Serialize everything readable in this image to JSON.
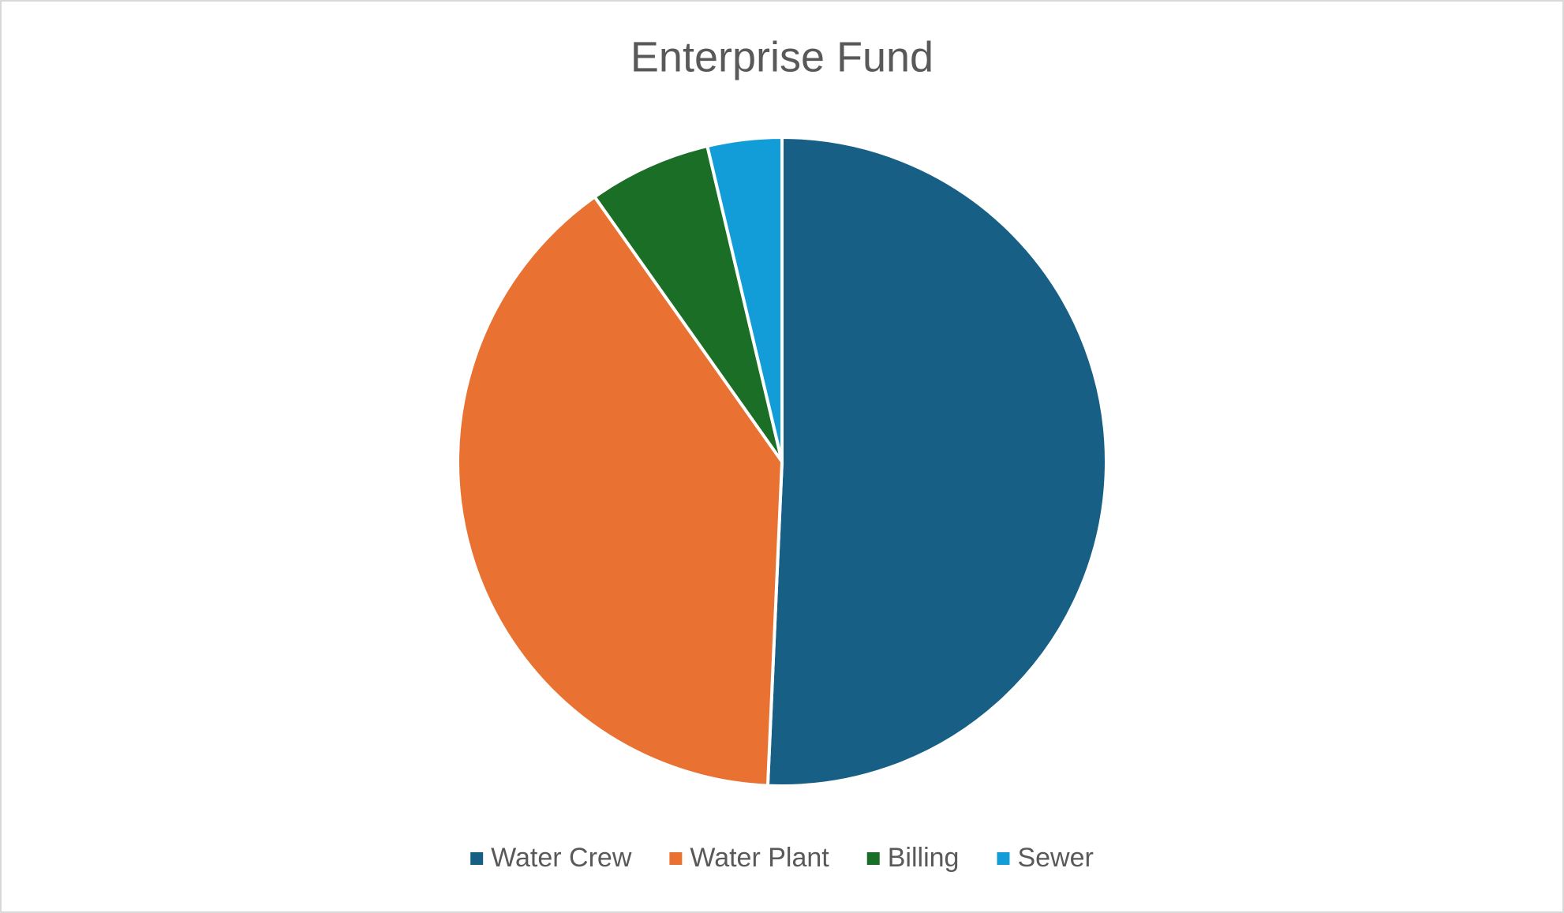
{
  "chart_data": {
    "type": "pie",
    "title": "Enterprise Fund",
    "categories": [
      "Water Crew",
      "Water Plant",
      "Billing",
      "Sewer"
    ],
    "values": [
      50.7,
      39.5,
      6.1,
      3.7
    ],
    "colors": [
      "#175f85",
      "#e97132",
      "#1b6e26",
      "#139dd8"
    ],
    "legend": "bottom"
  }
}
